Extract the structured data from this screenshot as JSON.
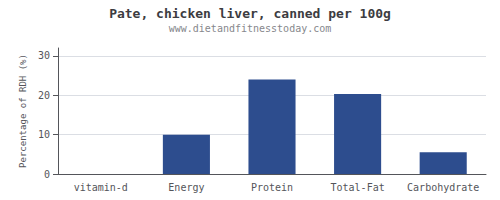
{
  "chart_data": {
    "type": "bar",
    "title": "Pate, chicken liver, canned per 100g",
    "subtitle": "www.dietandfitnesstoday.com",
    "categories": [
      "vitamin-d",
      "Energy",
      "Protein",
      "Total-Fat",
      "Carbohydrate"
    ],
    "values": [
      0,
      10,
      24,
      20.3,
      5.5
    ],
    "color": "#2d4d8e",
    "ylabel": "Percentage of RDH (%)",
    "ylim": [
      0,
      32
    ],
    "yticks": [
      0,
      10,
      20,
      30
    ],
    "grid": true
  }
}
